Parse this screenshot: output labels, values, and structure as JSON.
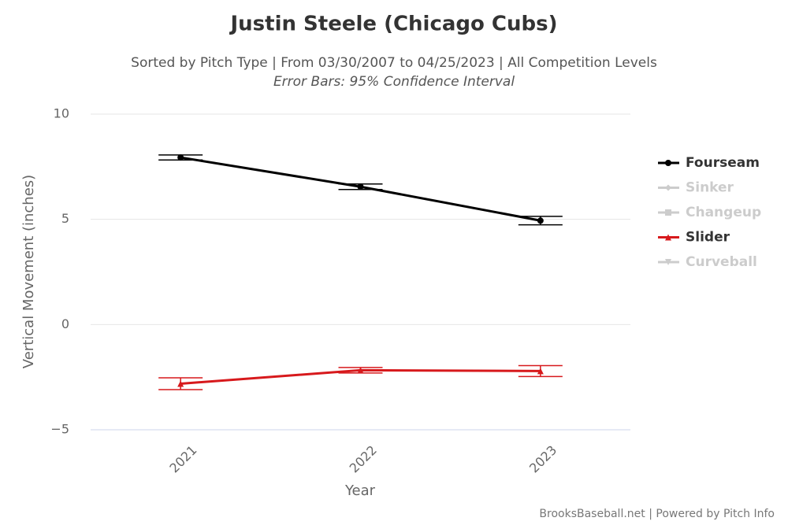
{
  "chart_data": {
    "type": "line",
    "title": "Justin Steele (Chicago Cubs)",
    "subtitle": "Sorted by Pitch Type | From 03/30/2007 to 04/25/2023 | All Competition Levels",
    "note": "Error Bars: 95% Confidence Interval",
    "credits": "BrooksBaseball.net | Powered by Pitch Info",
    "x_label": "Year",
    "y_label": "Vertical Movement (inches)",
    "categories": [
      "2021",
      "2022",
      "2023"
    ],
    "ylim": [
      -5,
      10
    ],
    "yticks": [
      10,
      5,
      0,
      {
        "value": -5,
        "label": "−5"
      }
    ],
    "grid": true,
    "legend": "right",
    "series": [
      {
        "name": "Fourseam",
        "color": "#000000",
        "marker": "circle",
        "visible": true,
        "values": [
          7.94,
          6.55,
          4.94
        ],
        "errors": [
          0.12,
          0.13,
          0.2
        ]
      },
      {
        "name": "Sinker",
        "color": "#cccccc",
        "marker": "diamond",
        "visible": false,
        "values": [
          null,
          null,
          null
        ],
        "errors": [
          null,
          null,
          null
        ]
      },
      {
        "name": "Changeup",
        "color": "#cccccc",
        "marker": "square",
        "visible": false,
        "values": [
          null,
          null,
          null
        ],
        "errors": [
          null,
          null,
          null
        ]
      },
      {
        "name": "Slider",
        "color": "#d7191c",
        "marker": "triangle",
        "visible": true,
        "values": [
          -2.81,
          -2.17,
          -2.21
        ],
        "errors": [
          0.28,
          0.13,
          0.26
        ]
      },
      {
        "name": "Curveball",
        "color": "#cccccc",
        "marker": "triangle-down",
        "visible": false,
        "values": [
          null,
          null,
          null
        ],
        "errors": [
          null,
          null,
          null
        ]
      }
    ]
  }
}
